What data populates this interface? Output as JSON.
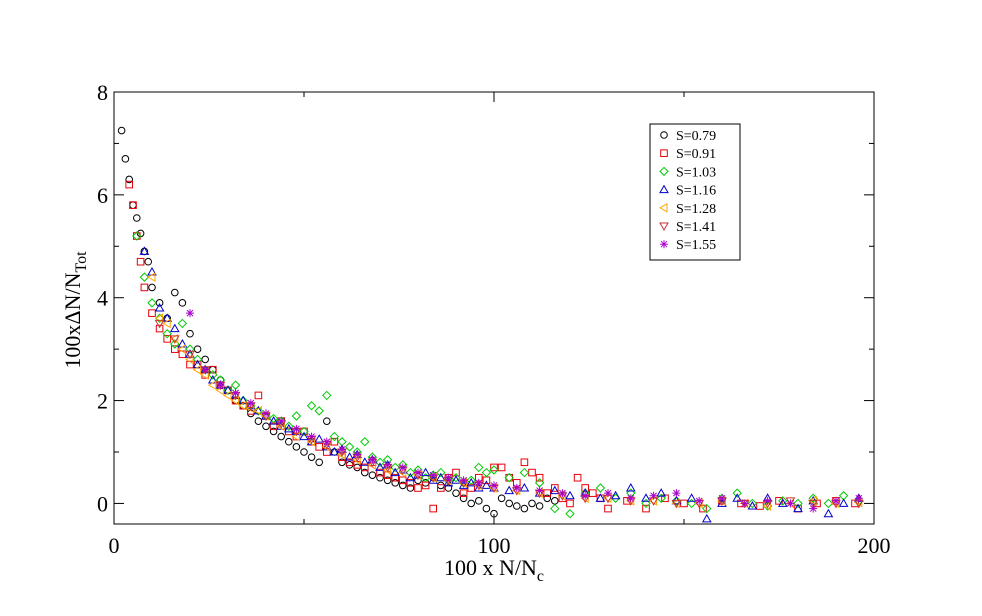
{
  "chart_data": {
    "type": "scatter",
    "title": "",
    "xlabel": "100 x N/N",
    "xlabel_sub": "c",
    "ylabel": "100xΔN/N",
    "ylabel_sub": "Tot",
    "xlim": [
      0,
      200
    ],
    "ylim": [
      -0.4,
      8
    ],
    "x_ticks": [
      0,
      100,
      200
    ],
    "y_ticks": [
      0,
      2,
      4,
      6,
      8
    ],
    "grid": false,
    "legend_position": "top-right",
    "series": [
      {
        "name": "S=0.79",
        "color": "#000000",
        "marker": "circle",
        "x": [
          2,
          3,
          4,
          5,
          6,
          7,
          8,
          9,
          10,
          12,
          14,
          16,
          18,
          20,
          22,
          24,
          26,
          28,
          30,
          32,
          34,
          36,
          38,
          40,
          42,
          44,
          46,
          48,
          50,
          52,
          54,
          56,
          58,
          60,
          62,
          64,
          66,
          68,
          70,
          72,
          74,
          76,
          78,
          80,
          82,
          84,
          86,
          88,
          90,
          92,
          94,
          96,
          98,
          100,
          102,
          104,
          106,
          108,
          110,
          112,
          114,
          116
        ],
        "y": [
          7.25,
          6.7,
          6.3,
          5.8,
          5.55,
          5.25,
          4.9,
          4.7,
          4.2,
          3.9,
          3.6,
          4.1,
          3.9,
          3.3,
          3.0,
          2.8,
          2.6,
          2.4,
          2.2,
          2.0,
          1.9,
          1.75,
          1.6,
          1.5,
          1.4,
          1.3,
          1.2,
          1.1,
          1.0,
          0.9,
          0.8,
          1.6,
          1.0,
          0.8,
          0.75,
          0.7,
          0.6,
          0.55,
          0.5,
          0.45,
          0.4,
          0.35,
          0.3,
          0.45,
          0.4,
          0.5,
          0.35,
          0.3,
          0.2,
          0.1,
          0.0,
          0.05,
          -0.1,
          -0.2,
          0.1,
          0.0,
          -0.05,
          -0.1,
          0.0,
          -0.05,
          0.1,
          0.05
        ]
      },
      {
        "name": "S=0.91",
        "color": "#e8000b",
        "marker": "square",
        "x": [
          4,
          5,
          6,
          7,
          8,
          10,
          12,
          14,
          16,
          18,
          20,
          22,
          24,
          26,
          28,
          30,
          32,
          34,
          36,
          38,
          40,
          42,
          44,
          46,
          48,
          50,
          52,
          54,
          56,
          58,
          60,
          62,
          64,
          66,
          68,
          70,
          72,
          74,
          76,
          78,
          80,
          82,
          84,
          86,
          88,
          90,
          92,
          94,
          96,
          98,
          100,
          102,
          104,
          106,
          108,
          110,
          112,
          114,
          116,
          118,
          120,
          122,
          124,
          126,
          128,
          130,
          135,
          140,
          145,
          150,
          155,
          160,
          165,
          170,
          175,
          180,
          185,
          190,
          195
        ],
        "y": [
          6.2,
          5.8,
          5.2,
          4.7,
          4.2,
          3.7,
          3.4,
          3.2,
          3.0,
          2.9,
          2.7,
          2.7,
          2.5,
          2.6,
          2.3,
          2.2,
          2.0,
          1.9,
          1.8,
          2.1,
          1.7,
          1.5,
          1.6,
          1.4,
          1.3,
          1.4,
          1.2,
          1.1,
          1.0,
          1.2,
          0.9,
          0.8,
          0.75,
          0.7,
          0.8,
          0.6,
          0.55,
          0.5,
          0.45,
          0.4,
          0.3,
          0.35,
          -0.1,
          0.3,
          0.5,
          0.6,
          0.2,
          0.3,
          0.5,
          0.45,
          0.7,
          0.7,
          0.5,
          0.4,
          0.8,
          0.6,
          0.5,
          0.2,
          0.3,
          0.1,
          0.0,
          0.5,
          0.3,
          0.2,
          0.1,
          -0.1,
          0.05,
          -0.1,
          0.1,
          0.0,
          -0.1,
          0.05,
          0.0,
          -0.05,
          0.05,
          -0.1,
          0.0,
          0.05,
          0.0
        ]
      },
      {
        "name": "S=1.03",
        "color": "#00cc00",
        "marker": "diamond",
        "x": [
          6,
          8,
          10,
          12,
          14,
          16,
          18,
          20,
          22,
          24,
          26,
          28,
          30,
          32,
          34,
          36,
          38,
          40,
          42,
          44,
          46,
          48,
          50,
          52,
          54,
          56,
          58,
          60,
          62,
          64,
          66,
          68,
          70,
          72,
          74,
          76,
          78,
          80,
          82,
          84,
          86,
          88,
          90,
          92,
          94,
          96,
          98,
          100,
          104,
          108,
          112,
          116,
          120,
          124,
          128,
          132,
          136,
          140,
          144,
          148,
          152,
          156,
          160,
          164,
          168,
          172,
          176,
          180,
          184,
          188,
          192,
          196
        ],
        "y": [
          5.2,
          4.4,
          3.9,
          3.6,
          3.3,
          3.1,
          3.5,
          3.0,
          2.8,
          2.6,
          2.5,
          2.4,
          2.2,
          2.3,
          2.0,
          1.9,
          1.8,
          1.7,
          1.65,
          1.6,
          1.5,
          1.7,
          1.4,
          1.9,
          1.8,
          2.1,
          1.3,
          1.2,
          1.1,
          1.0,
          1.2,
          0.9,
          0.8,
          0.85,
          0.7,
          0.75,
          0.6,
          0.65,
          0.5,
          0.55,
          0.6,
          0.45,
          0.5,
          0.4,
          0.45,
          0.7,
          0.6,
          0.65,
          0.5,
          0.6,
          0.4,
          -0.1,
          -0.2,
          0.2,
          0.3,
          0.1,
          0.2,
          0.0,
          0.1,
          0.05,
          0.0,
          -0.1,
          0.1,
          0.2,
          0.0,
          -0.05,
          0.05,
          0.0,
          0.1,
          0.0,
          0.15,
          0.05
        ]
      },
      {
        "name": "S=1.16",
        "color": "#0000cc",
        "marker": "triangle-up",
        "x": [
          8,
          10,
          12,
          14,
          16,
          18,
          20,
          22,
          24,
          26,
          28,
          30,
          32,
          34,
          36,
          38,
          40,
          42,
          44,
          46,
          48,
          50,
          52,
          54,
          56,
          58,
          60,
          62,
          64,
          66,
          68,
          70,
          72,
          74,
          76,
          78,
          80,
          82,
          84,
          86,
          88,
          90,
          92,
          94,
          96,
          98,
          100,
          104,
          108,
          112,
          116,
          120,
          124,
          128,
          132,
          136,
          140,
          144,
          148,
          152,
          156,
          160,
          164,
          168,
          172,
          176,
          180,
          184,
          188,
          192,
          196
        ],
        "y": [
          4.9,
          4.5,
          3.8,
          3.6,
          3.4,
          3.1,
          2.9,
          2.7,
          2.6,
          2.4,
          2.3,
          2.2,
          2.1,
          2.0,
          1.9,
          1.8,
          1.7,
          1.6,
          1.5,
          1.45,
          1.4,
          1.3,
          1.2,
          1.25,
          1.1,
          1.0,
          1.05,
          0.9,
          0.95,
          0.8,
          0.85,
          0.7,
          0.75,
          0.6,
          0.65,
          0.5,
          0.55,
          0.6,
          0.45,
          0.5,
          0.4,
          0.45,
          0.35,
          0.4,
          0.3,
          0.35,
          0.3,
          0.25,
          0.3,
          0.2,
          0.25,
          0.15,
          0.2,
          0.1,
          0.15,
          0.3,
          0.1,
          0.2,
          0.05,
          0.1,
          -0.3,
          0.0,
          0.1,
          -0.05,
          0.1,
          0.0,
          -0.1,
          0.05,
          -0.2,
          0.0,
          0.1
        ]
      },
      {
        "name": "S=1.28",
        "color": "#ffa500",
        "marker": "triangle-left",
        "x": [
          10,
          12,
          14,
          16,
          18,
          20,
          22,
          24,
          26,
          28,
          30,
          32,
          34,
          36,
          38,
          40,
          44,
          48,
          52,
          56,
          60,
          64,
          68,
          72,
          76,
          80,
          84,
          88,
          92,
          96,
          100,
          106,
          112,
          118,
          124,
          130,
          136,
          142,
          148,
          154,
          160,
          166,
          172,
          178,
          184,
          190,
          196
        ],
        "y": [
          4.4,
          3.6,
          3.5,
          3.2,
          3.0,
          2.8,
          2.6,
          2.5,
          2.3,
          2.2,
          2.1,
          2.0,
          1.9,
          1.85,
          1.8,
          1.7,
          1.5,
          1.3,
          1.2,
          1.1,
          0.95,
          0.85,
          0.75,
          0.65,
          0.6,
          0.55,
          0.5,
          0.45,
          0.4,
          0.35,
          0.3,
          0.25,
          0.2,
          0.15,
          0.1,
          0.1,
          0.05,
          0.05,
          0.0,
          0.0,
          0.05,
          0.0,
          -0.05,
          0.0,
          0.05,
          0.0,
          0.02
        ]
      },
      {
        "name": "S=1.41",
        "color": "#cc3333",
        "marker": "triangle-down",
        "x": [
          12,
          16,
          20,
          24,
          28,
          32,
          36,
          40,
          44,
          48,
          52,
          56,
          60,
          64,
          68,
          72,
          76,
          80,
          84,
          88,
          92,
          96,
          100,
          106,
          112,
          118,
          124,
          130,
          136,
          142,
          148,
          154,
          160,
          166,
          172,
          178,
          184,
          190,
          196
        ],
        "y": [
          3.5,
          3.2,
          2.9,
          2.6,
          2.3,
          2.1,
          1.9,
          1.7,
          1.55,
          1.4,
          1.25,
          1.15,
          1.0,
          0.9,
          0.8,
          0.7,
          0.65,
          0.55,
          0.5,
          0.45,
          0.4,
          0.35,
          0.3,
          0.25,
          0.2,
          0.15,
          0.1,
          0.1,
          0.05,
          0.05,
          0.0,
          0.0,
          0.05,
          0.0,
          0.0,
          0.05,
          0.0,
          0.0,
          0.0
        ]
      },
      {
        "name": "S=1.55",
        "color": "#aa00cc",
        "marker": "star",
        "x": [
          20,
          24,
          28,
          32,
          36,
          40,
          44,
          48,
          52,
          56,
          60,
          64,
          68,
          72,
          76,
          80,
          84,
          88,
          92,
          96,
          100,
          106,
          112,
          118,
          124,
          130,
          136,
          142,
          148,
          154,
          160,
          166,
          172,
          178,
          184,
          190,
          196
        ],
        "y": [
          3.7,
          2.6,
          2.3,
          2.15,
          1.95,
          1.75,
          1.6,
          1.45,
          1.3,
          1.2,
          1.05,
          0.95,
          0.85,
          0.75,
          0.7,
          0.6,
          0.55,
          0.5,
          0.45,
          0.4,
          0.35,
          0.3,
          0.25,
          0.2,
          0.15,
          0.2,
          0.1,
          0.15,
          0.2,
          0.05,
          0.1,
          0.0,
          0.05,
          0.0,
          -0.1,
          0.05,
          0.1
        ]
      }
    ]
  }
}
